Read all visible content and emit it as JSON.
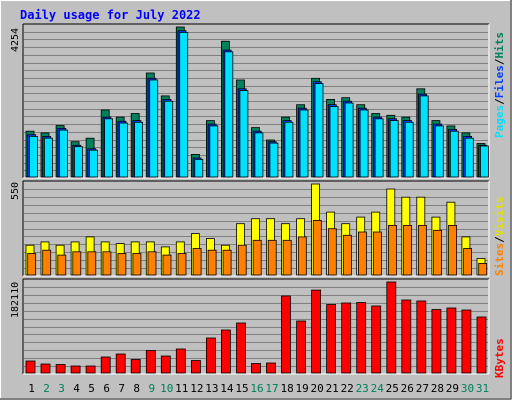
{
  "title": "Daily usage for July 2022",
  "colors": {
    "background": "#c0c0c0",
    "panel": "#c0c0c0",
    "title": "#0000ff",
    "hits": "#00805c",
    "files": "#0040ff",
    "pages": "#00e0ff",
    "visits": "#ffff00",
    "sites": "#ff8000",
    "kbytes": "#ff0000"
  },
  "chart_data": [
    {
      "type": "bar",
      "label_left": "4254",
      "legend": [
        "Pages",
        "/",
        "Files",
        "/",
        "Hits"
      ],
      "categories": [
        "1",
        "2",
        "3",
        "4",
        "5",
        "6",
        "7",
        "8",
        "9",
        "10",
        "11",
        "12",
        "13",
        "14",
        "15",
        "16",
        "17",
        "18",
        "19",
        "20",
        "21",
        "22",
        "23",
        "24",
        "25",
        "26",
        "27",
        "28",
        "29",
        "30",
        "31"
      ],
      "weekend": [
        false,
        true,
        true,
        false,
        false,
        false,
        false,
        false,
        true,
        true,
        false,
        false,
        false,
        false,
        false,
        true,
        true,
        false,
        false,
        false,
        false,
        false,
        true,
        true,
        false,
        false,
        false,
        false,
        false,
        true,
        true
      ],
      "ylim": [
        0,
        4254
      ],
      "series": [
        {
          "name": "Hits",
          "values": [
            1300,
            1250,
            1460,
            1000,
            1100,
            1900,
            1700,
            1800,
            2950,
            2300,
            4254,
            640,
            1600,
            3850,
            2750,
            1400,
            1050,
            1700,
            2050,
            2800,
            2200,
            2250,
            2050,
            1800,
            1750,
            1700,
            2500,
            1600,
            1450,
            1250,
            950
          ]
        },
        {
          "name": "Files",
          "values": [
            1200,
            1150,
            1380,
            900,
            800,
            1700,
            1580,
            1600,
            2800,
            2200,
            4150,
            540,
            1500,
            3600,
            2500,
            1300,
            1000,
            1600,
            1950,
            2700,
            2050,
            2150,
            1950,
            1700,
            1650,
            1600,
            2350,
            1500,
            1350,
            1150,
            900
          ]
        },
        {
          "name": "Pages",
          "values": [
            1150,
            1100,
            1330,
            860,
            760,
            1650,
            1530,
            1550,
            2750,
            2150,
            4100,
            500,
            1450,
            3550,
            2450,
            1250,
            960,
            1550,
            1900,
            2650,
            2000,
            2100,
            1900,
            1650,
            1600,
            1550,
            2300,
            1450,
            1300,
            1100,
            880
          ]
        }
      ]
    },
    {
      "type": "bar",
      "label_left": "550",
      "legend": [
        "Sites",
        "/",
        "Visits"
      ],
      "categories": [
        "1",
        "2",
        "3",
        "4",
        "5",
        "6",
        "7",
        "8",
        "9",
        "10",
        "11",
        "12",
        "13",
        "14",
        "15",
        "16",
        "17",
        "18",
        "19",
        "20",
        "21",
        "22",
        "23",
        "24",
        "25",
        "26",
        "27",
        "28",
        "29",
        "30",
        "31"
      ],
      "ylim": [
        0,
        550
      ],
      "series": [
        {
          "name": "Visits",
          "values": [
            180,
            200,
            180,
            200,
            230,
            200,
            190,
            200,
            200,
            170,
            200,
            250,
            220,
            180,
            310,
            340,
            340,
            310,
            340,
            550,
            380,
            310,
            350,
            380,
            520,
            470,
            470,
            350,
            440,
            230,
            100
          ]
        },
        {
          "name": "Sites",
          "values": [
            130,
            150,
            120,
            140,
            140,
            140,
            130,
            130,
            140,
            120,
            130,
            160,
            150,
            150,
            180,
            210,
            210,
            210,
            230,
            330,
            280,
            240,
            260,
            260,
            300,
            300,
            300,
            270,
            300,
            160,
            70
          ]
        }
      ]
    },
    {
      "type": "bar",
      "label_left": "182110",
      "legend": [
        "KBytes"
      ],
      "categories": [
        "1",
        "2",
        "3",
        "4",
        "5",
        "6",
        "7",
        "8",
        "9",
        "10",
        "11",
        "12",
        "13",
        "14",
        "15",
        "16",
        "17",
        "18",
        "19",
        "20",
        "21",
        "22",
        "23",
        "24",
        "25",
        "26",
        "27",
        "28",
        "29",
        "30",
        "31"
      ],
      "ylim": [
        0,
        182110
      ],
      "series": [
        {
          "name": "KBytes",
          "values": [
            24000,
            18000,
            17000,
            14000,
            14000,
            32000,
            38000,
            27000,
            45000,
            34000,
            48000,
            25000,
            70000,
            86000,
            100000,
            19000,
            20000,
            154000,
            104000,
            166000,
            137000,
            140000,
            141000,
            134000,
            182110,
            146000,
            144000,
            127000,
            130000,
            126000,
            112000
          ]
        }
      ]
    }
  ]
}
